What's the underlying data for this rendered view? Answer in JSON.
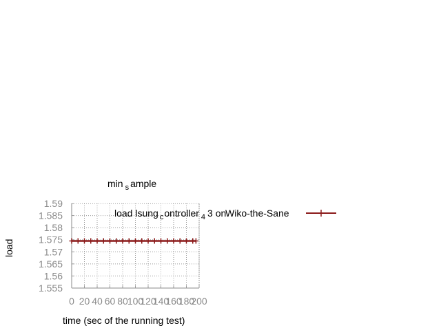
{
  "chart_data": {
    "type": "line",
    "title_parts": [
      "min",
      "s",
      "ample"
    ],
    "xlabel": "time (sec of the running test)",
    "ylabel": "load",
    "xlim": [
      0,
      200
    ],
    "ylim": [
      1.555,
      1.59
    ],
    "x_ticks": [
      "0",
      "20",
      "40",
      "60",
      "80",
      "100",
      "120",
      "140",
      "160",
      "180",
      "200"
    ],
    "y_ticks": [
      "1.555",
      "1.56",
      "1.565",
      "1.57",
      "1.575",
      "1.58",
      "1.585",
      "1.59"
    ],
    "grid": true,
    "legend_position": "top-right",
    "series": [
      {
        "name_parts": [
          "load lsung",
          "c",
          "ontroller",
          "4",
          "3 on",
          "Wiko-the-Sane"
        ],
        "color": "#8b1a1a",
        "marker": "plus",
        "x": [
          0,
          10,
          20,
          30,
          40,
          50,
          60,
          70,
          80,
          90,
          100,
          110,
          120,
          130,
          140,
          150,
          160,
          170,
          180,
          190,
          195
        ],
        "y": [
          1.5745,
          1.5745,
          1.5745,
          1.5745,
          1.5745,
          1.5745,
          1.5745,
          1.5745,
          1.5745,
          1.5745,
          1.5745,
          1.5745,
          1.5745,
          1.5745,
          1.5745,
          1.5745,
          1.5745,
          1.5745,
          1.5745,
          1.5745,
          1.5745
        ]
      }
    ]
  }
}
